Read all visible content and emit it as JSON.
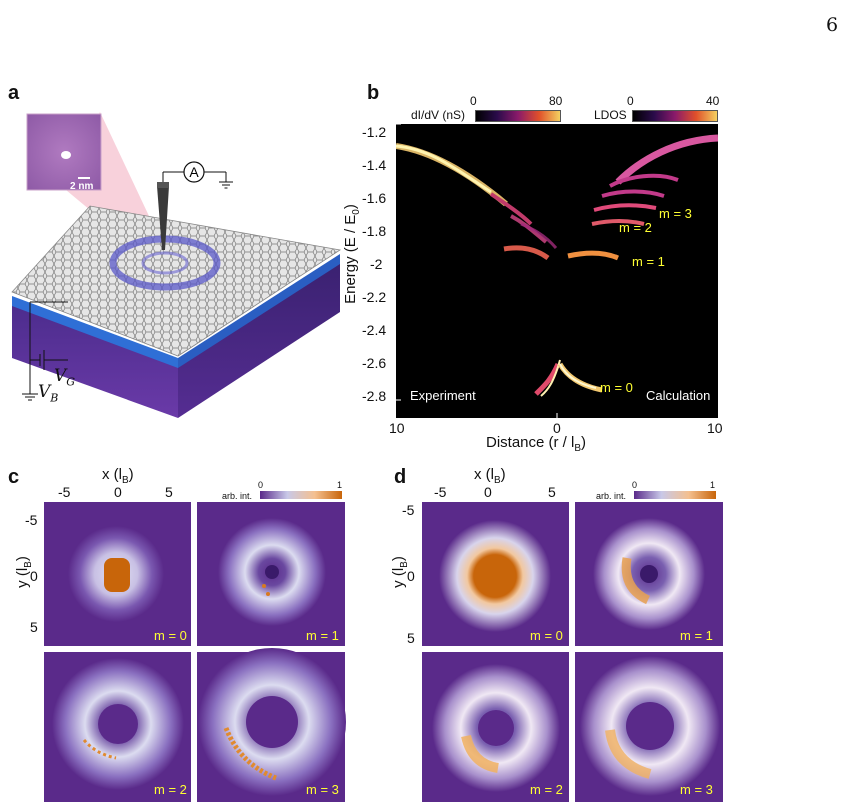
{
  "page_number": "6",
  "panels": {
    "a": {
      "label": "a",
      "scale_bar": "2 nm",
      "ammeter": "A",
      "vg_label": "V",
      "vg_sub": "G",
      "vb_label": "V",
      "vb_sub": "B"
    },
    "b": {
      "label": "b",
      "cbar_exp": {
        "label": "dI/dV (nS)",
        "min": "0",
        "max": "80"
      },
      "cbar_calc": {
        "label": "LDOS",
        "min": "0",
        "max": "40"
      },
      "ylabel": "Energy (E / E",
      "ylabel_sub": "0",
      "ylabel_end": ")",
      "xlabel": "Distance (r / l",
      "xlabel_sub": "B",
      "xlabel_end": ")",
      "yticks": [
        "-1.2",
        "-1.4",
        "-1.6",
        "-1.8",
        "-2",
        "-2.2",
        "-2.4",
        "-2.6",
        "-2.8"
      ],
      "xticks": [
        "10",
        "0",
        "10"
      ],
      "text_left": "Experiment",
      "text_right": "Calculation",
      "annotations": [
        "m = 3",
        "m = 2",
        "m = 1",
        "m = 0"
      ]
    },
    "c": {
      "label": "c",
      "xlabel": "x (l",
      "xlabel_sub": "B",
      "xlabel_end": ")",
      "ylabel": "y (l",
      "ylabel_sub": "B",
      "ylabel_end": ")",
      "xticks": [
        "-5",
        "0",
        "5"
      ],
      "yticks": [
        "-5",
        "0",
        "5"
      ],
      "cbar": {
        "label": "arb. int.",
        "min": "0",
        "max": "1"
      },
      "maps": [
        "m = 0",
        "m = 1",
        "m = 2",
        "m = 3"
      ]
    },
    "d": {
      "label": "d",
      "xlabel": "x (l",
      "xlabel_sub": "B",
      "xlabel_end": ")",
      "ylabel": "y (l",
      "ylabel_sub": "B",
      "ylabel_end": ")",
      "xticks": [
        "-5",
        "0",
        "5"
      ],
      "yticks": [
        "-5",
        "0",
        "5"
      ],
      "cbar": {
        "label": "arb. int.",
        "min": "0",
        "max": "1"
      },
      "maps": [
        "m = 0",
        "m = 1",
        "m = 2",
        "m = 3"
      ]
    }
  },
  "colors": {
    "map_bg": "#5a2a8a",
    "orange": "#c8650a",
    "annotation": "#ffff33"
  }
}
